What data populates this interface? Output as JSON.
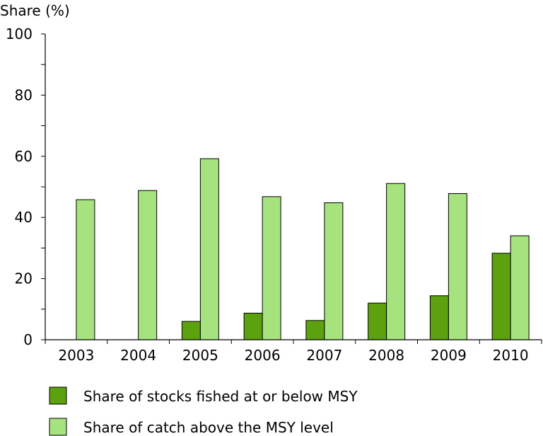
{
  "chart_data": {
    "type": "bar",
    "title": "",
    "xlabel": "",
    "ylabel": "Share (%)",
    "ylim": [
      0,
      100
    ],
    "yticks": [
      0,
      20,
      40,
      60,
      80,
      100
    ],
    "categories": [
      "2003",
      "2004",
      "2005",
      "2006",
      "2007",
      "2008",
      "2009",
      "2010"
    ],
    "series": [
      {
        "name": "Share of stocks fished at or below MSY",
        "color": "#5ca20e",
        "values": [
          null,
          null,
          6,
          8.7,
          6.3,
          12,
          14.4,
          28.3
        ]
      },
      {
        "name": "Share of catch above the MSY level",
        "color": "#a6e37e",
        "values": [
          45.8,
          48.8,
          59.2,
          46.8,
          44.8,
          51.1,
          47.8,
          34
        ]
      }
    ],
    "grid": false,
    "legend_position": "bottom"
  }
}
